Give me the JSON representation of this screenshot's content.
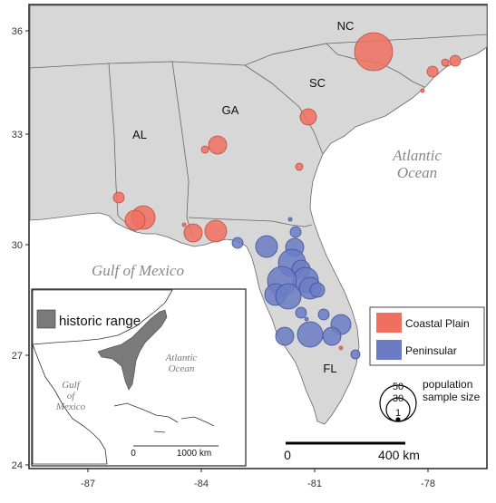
{
  "map": {
    "axes": {
      "y_ticks": [
        "36",
        "33",
        "30",
        "27",
        "24"
      ],
      "x_ticks": [
        "-87",
        "-84",
        "-81",
        "-78"
      ]
    },
    "state_labels": [
      "NC",
      "SC",
      "GA",
      "AL",
      "FL"
    ],
    "water_labels": {
      "atlantic_line1": "Atlantic",
      "atlantic_line2": "Ocean",
      "gulf": "Gulf of Mexico"
    },
    "legend": {
      "coastal_plain": "Coastal Plain",
      "peninsular": "Peninsular",
      "coastal_color": "#f07060",
      "peninsular_color": "#6b7cc4",
      "size_title_line1": "population",
      "size_title_line2": "sample size",
      "size_values": [
        "50",
        "30",
        "1"
      ]
    },
    "scale_bar": {
      "start_label": "0",
      "end_label": "400 km"
    },
    "inset": {
      "legend_label": "historic range",
      "range_color": "#7a7a7a",
      "atlantic_line1": "Atlantic",
      "atlantic_line2": "Ocean",
      "gulf_line1": "Gulf",
      "gulf_line2": "of",
      "gulf_line3": "Mexico",
      "scale_start": "0",
      "scale_end": "1000 km"
    }
  }
}
